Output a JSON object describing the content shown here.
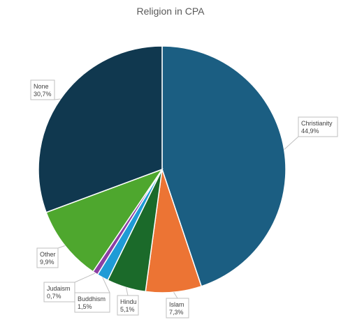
{
  "chart_data": {
    "type": "pie",
    "title": "Religion in CPA",
    "slices": [
      {
        "label": "Christianity",
        "value": 44.9,
        "display": "44,9%",
        "color": "#1b5e82"
      },
      {
        "label": "Islam",
        "value": 7.3,
        "display": "7,3%",
        "color": "#ec7434"
      },
      {
        "label": "Hindu",
        "value": 5.1,
        "display": "5,1%",
        "color": "#1b6a2a"
      },
      {
        "label": "Buddhism",
        "value": 1.5,
        "display": "1,5%",
        "color": "#1f9bd6"
      },
      {
        "label": "Judaism",
        "value": 0.7,
        "display": "0,7%",
        "color": "#8b3fa3"
      },
      {
        "label": "Other",
        "value": 9.9,
        "display": "9,9%",
        "color": "#4ea72e"
      },
      {
        "label": "None",
        "value": 30.7,
        "display": "30,7%",
        "color": "#10384f"
      }
    ],
    "legend": "none",
    "data_labels": "callouts"
  }
}
